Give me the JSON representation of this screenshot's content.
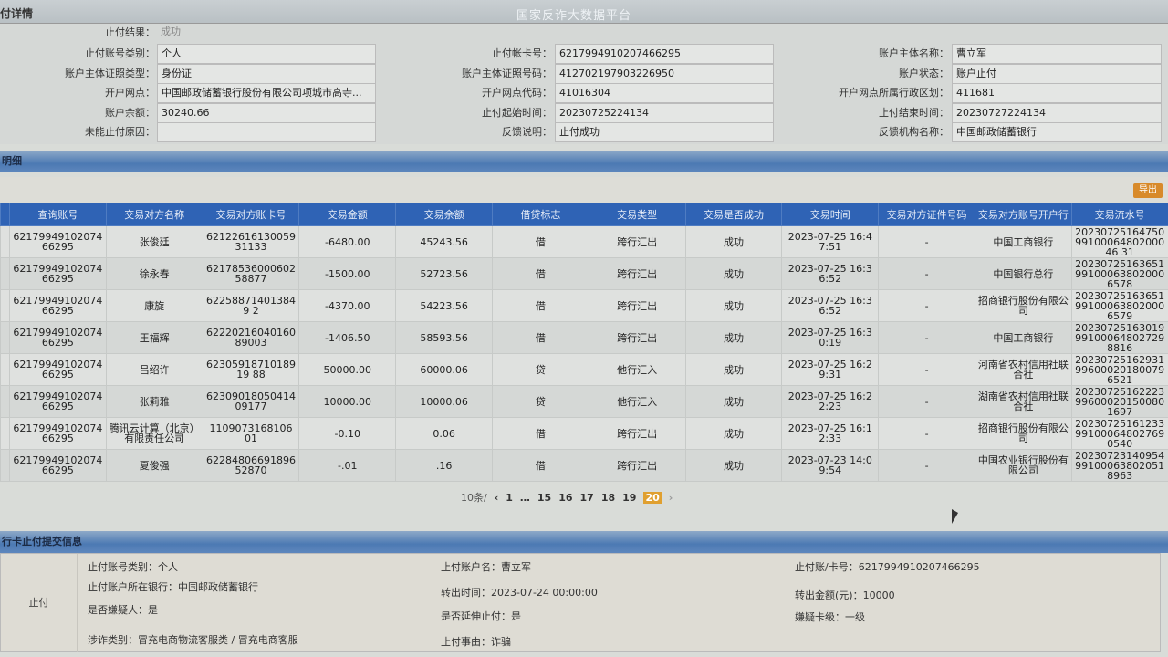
{
  "header": {
    "left_title": "付详情",
    "center_title": "国家反诈大数据平台"
  },
  "info": {
    "result": {
      "label": "止付结果：",
      "value": "成功"
    },
    "fields": [
      {
        "label": "止付账号类别：",
        "value": "个人"
      },
      {
        "label": "止付帐卡号：",
        "value": "6217994910207466295"
      },
      {
        "label": "账户主体名称：",
        "value": "曹立军"
      },
      {
        "label": "账户主体证照类型：",
        "value": "身份证"
      },
      {
        "label": "账户主体证照号码：",
        "value": "412702197903226950"
      },
      {
        "label": "账户状态：",
        "value": "账户止付"
      },
      {
        "label": "开户网点：",
        "value": "中国邮政储蓄银行股份有限公司项城市高寺..."
      },
      {
        "label": "开户网点代码：",
        "value": "41016304"
      },
      {
        "label": "开户网点所属行政区划：",
        "value": "411681"
      },
      {
        "label": "账户余额：",
        "value": "30240.66"
      },
      {
        "label": "止付起始时间：",
        "value": "20230725224134"
      },
      {
        "label": "止付结束时间：",
        "value": "20230727224134"
      },
      {
        "label": "未能止付原因：",
        "value": ""
      },
      {
        "label": "反馈说明：",
        "value": "止付成功"
      },
      {
        "label": "反馈机构名称：",
        "value": "中国邮政储蓄银行"
      }
    ]
  },
  "detail": {
    "section_title": "明细",
    "export_label": "导出",
    "columns": [
      "",
      "查询账号",
      "交易对方名称",
      "交易对方账卡号",
      "交易金额",
      "交易余额",
      "借贷标志",
      "交易类型",
      "交易是否成功",
      "交易时间",
      "交易对方证件号码",
      "交易对方账号开户行",
      "交易流水号"
    ],
    "rows": [
      [
        "",
        "6217994910207466295",
        "张俊廷",
        "6212261613005931133",
        "-6480.00",
        "45243.56",
        "借",
        "跨行汇出",
        "成功",
        "2023-07-25 16:47:51",
        "-",
        "中国工商银行",
        "202307251647509910006480200046 31"
      ],
      [
        "",
        "6217994910207466295",
        "徐永春",
        "6217853600060258877",
        "-1500.00",
        "52723.56",
        "借",
        "跨行汇出",
        "成功",
        "2023-07-25 16:36:52",
        "-",
        "中国银行总行",
        "2023072516365199100063802000 6578"
      ],
      [
        "",
        "6217994910207466295",
        "康旋",
        "622588714013849 2",
        "-4370.00",
        "54223.56",
        "借",
        "跨行汇出",
        "成功",
        "2023-07-25 16:36:52",
        "-",
        "招商银行股份有限公司",
        "2023072516365199100063802000 6579"
      ],
      [
        "",
        "6217994910207466295",
        "王福辉",
        "6222021604016089003",
        "-1406.50",
        "58593.56",
        "借",
        "跨行汇出",
        "成功",
        "2023-07-25 16:30:19",
        "-",
        "中国工商银行",
        "2023072516301999100064802729 8816"
      ],
      [
        "",
        "6217994910207466295",
        "吕绍许",
        "6230591871018919 88",
        "50000.00",
        "60000.06",
        "贷",
        "他行汇入",
        "成功",
        "2023-07-25 16:29:31",
        "-",
        "河南省农村信用社联合社",
        "2023072516293199600020180079 6521"
      ],
      [
        "",
        "6217994910207466295",
        "张莉雅",
        "6230901805041409177",
        "10000.00",
        "10000.06",
        "贷",
        "他行汇入",
        "成功",
        "2023-07-25 16:22:23",
        "-",
        "湖南省农村信用社联合社",
        "2023072516222399600020150080 1697"
      ],
      [
        "",
        "6217994910207466295",
        "腾讯云计算（北京）有限责任公司",
        "1109073168106 01",
        "-0.10",
        "0.06",
        "借",
        "跨行汇出",
        "成功",
        "2023-07-25 16:12:33",
        "-",
        "招商银行股份有限公司",
        "2023072516123399100064802769 0540"
      ],
      [
        "",
        "6217994910207466295",
        "夏俊强",
        "6228480669189652870",
        "-.01",
        ".16",
        "借",
        "跨行汇出",
        "成功",
        "2023-07-23 14:09:54",
        "-",
        "中国农业银行股份有限公司",
        "2023072314095499100063802051 8963"
      ]
    ]
  },
  "pager": {
    "page_size": "10条/",
    "prev": "‹",
    "pages": [
      "1",
      "…",
      "15",
      "16",
      "17",
      "18",
      "19",
      "20"
    ],
    "current": "20",
    "next": "›"
  },
  "submit": {
    "section_title": "行卡止付提交信息",
    "row_label": "止付",
    "items": [
      "止付账号类别：个人",
      "止付账户名：曹立军",
      "止付账/卡号：6217994910207466295",
      "止付账户所在银行：中国邮政储蓄银行",
      "转出时间：2023-07-24 00:00:00",
      "转出金额(元)：10000",
      "是否嫌疑人：是",
      "是否延伸止付：是",
      "嫌疑卡级：一级",
      "涉诈类别：冒充电商物流客服类 / 冒充电商客服",
      "止付事由：诈骗"
    ]
  }
}
